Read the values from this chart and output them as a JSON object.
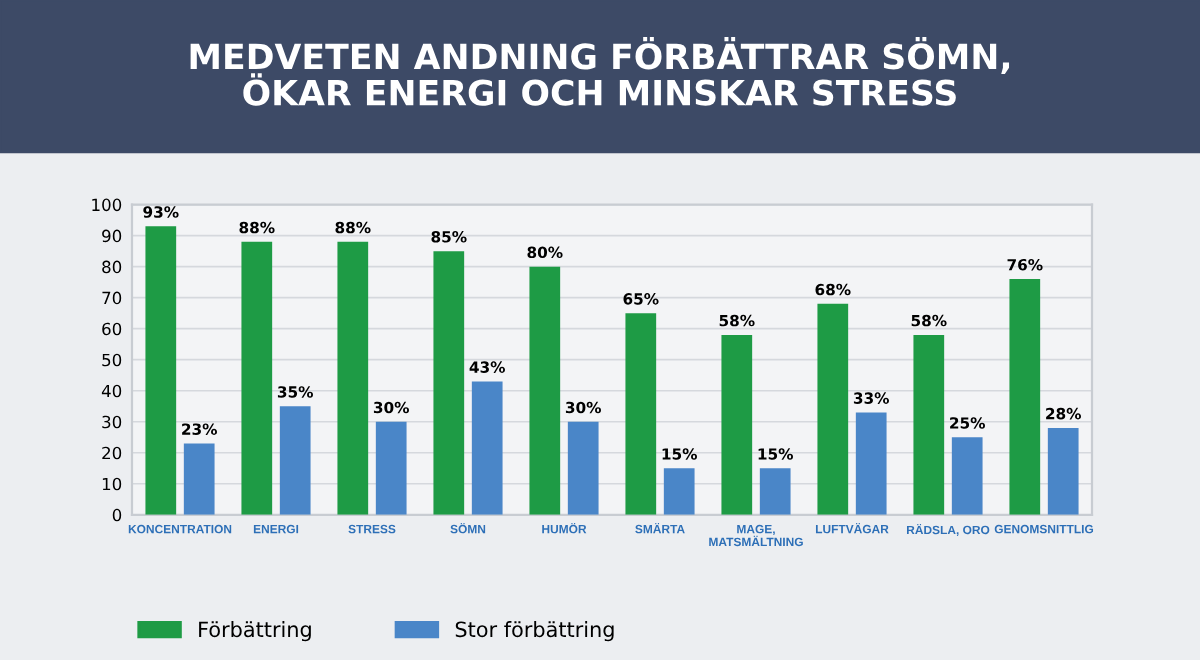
{
  "chart_data": {
    "type": "bar",
    "title": "MEDVETEN ANDNING FÖRBÄTTRAR SÖMN,\nÖKAR ENERGI OCH MINSKAR STRESS",
    "categories": [
      "KONCENTRATION",
      "ENERGI",
      "STRESS",
      "SÖMN",
      "HUMÖR",
      "SMÄRTA",
      "MAGE,\nMATSMÄLTNING",
      "LUFTVÄGAR",
      "RÄDSLA, ORO",
      "GENOMSNITTLIG"
    ],
    "series": [
      {
        "name": "Förbättring",
        "color": "#1e9b45",
        "values": [
          93,
          88,
          88,
          85,
          80,
          65,
          58,
          68,
          58,
          76
        ],
        "value_labels": [
          "93%",
          "88%",
          "88%",
          "85%",
          "80%",
          "65%",
          "58%",
          "68%",
          "58%",
          "76%"
        ]
      },
      {
        "name": "Stor förbättring",
        "color": "#4a86c8",
        "values": [
          23,
          35,
          30,
          43,
          30,
          15,
          15,
          33,
          25,
          28
        ],
        "value_labels": [
          "23%",
          "35%",
          "30%",
          "43%",
          "30%",
          "15%",
          "15%",
          "33%",
          "25%",
          "28%"
        ]
      }
    ],
    "ylim": [
      0,
      100
    ],
    "yticks": [
      0,
      10,
      20,
      30,
      40,
      50,
      60,
      70,
      80,
      90,
      100
    ],
    "grid": "y",
    "legend": "bottom left"
  }
}
